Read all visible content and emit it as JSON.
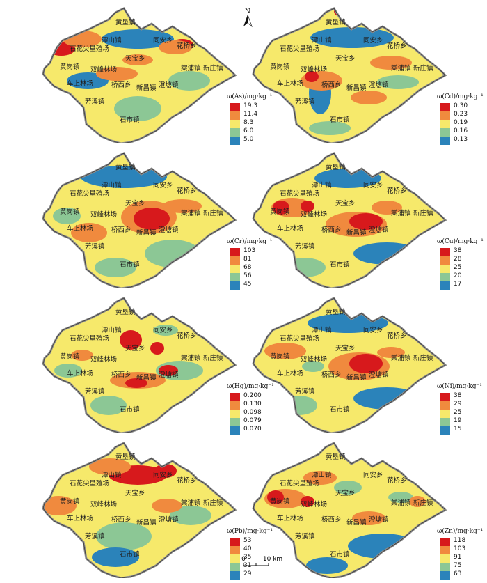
{
  "north_label": "N",
  "scalebar": {
    "zero": "0",
    "distance": "10 km"
  },
  "colors": [
    "#d7191c",
    "#f08a3e",
    "#f6e96b",
    "#8cc795",
    "#2b83ba"
  ],
  "town_names": {
    "huangken": "黄垦镇",
    "tanshan": "潭山镇",
    "tongan": "同安乡",
    "shihua": "石花尖垦殖场",
    "huaqiao": "花桥乡",
    "tianbao": "天宝乡",
    "huanggang": "黄岗镇",
    "shuangfeng": "双峰林场",
    "tangpu": "棠浦镇",
    "xinzhuang": "新庄镇",
    "cheshang": "车上林场",
    "qiaoxi": "桥西乡",
    "xinchang": "新昌镇",
    "chengtang": "澄塘镇",
    "fangxi": "芳溪镇",
    "shishi": "石市镇"
  },
  "panels": [
    {
      "title": "ω(As)/mg·kg⁻¹",
      "breaks": [
        "19.3",
        "11.4",
        "8.3",
        "6.0",
        "5.0"
      ]
    },
    {
      "title": "ω(Cd)/mg·kg⁻¹",
      "breaks": [
        "0.30",
        "0.23",
        "0.19",
        "0.16",
        "0.13"
      ]
    },
    {
      "title": "ω(Cr)/mg·kg⁻¹",
      "breaks": [
        "103",
        "81",
        "68",
        "56",
        "45"
      ]
    },
    {
      "title": "ω(Cu)/mg·kg⁻¹",
      "breaks": [
        "38",
        "28",
        "25",
        "20",
        "17"
      ]
    },
    {
      "title": "ω(Hg)/mg·kg⁻¹",
      "breaks": [
        "0.200",
        "0.130",
        "0.098",
        "0.079",
        "0.070"
      ]
    },
    {
      "title": "ω(Ni)/mg·kg⁻¹",
      "breaks": [
        "38",
        "29",
        "25",
        "19",
        "15"
      ]
    },
    {
      "title": "ω(Pb)/mg·kg⁻¹",
      "breaks": [
        "53",
        "40",
        "35",
        "31",
        "29"
      ]
    },
    {
      "title": "ω(Zn)/mg·kg⁻¹",
      "breaks": [
        "118",
        "103",
        "91",
        "75",
        "63"
      ]
    }
  ]
}
